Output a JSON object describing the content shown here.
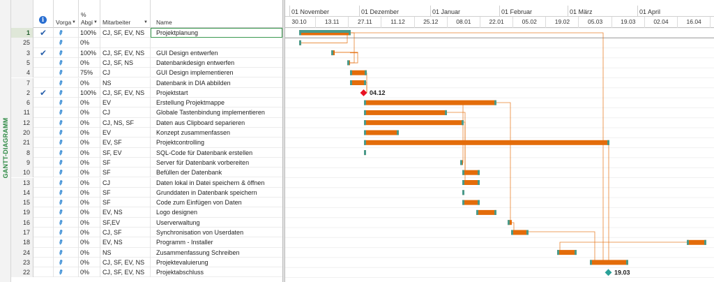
{
  "view_label": "GANTT-DIAGRAMM",
  "columns": {
    "info_icon": "info-icon",
    "mode": "Vorga",
    "pct_top": "%",
    "pct": "Abgi",
    "resources": "Mitarbeiter",
    "name": "Name"
  },
  "rows": [
    {
      "id": "1",
      "done": true,
      "pct": "100%",
      "res": "CJ, SF, EV, NS",
      "name": "Projektplanung"
    },
    {
      "id": "25",
      "done": false,
      "pct": "0%",
      "res": "",
      "name": ""
    },
    {
      "id": "3",
      "done": true,
      "pct": "100%",
      "res": "CJ, SF, EV, NS",
      "name": "GUI Design entwerfen"
    },
    {
      "id": "5",
      "done": false,
      "pct": "0%",
      "res": "CJ, SF, NS",
      "name": "Datenbankdesign entwerfen"
    },
    {
      "id": "4",
      "done": false,
      "pct": "75%",
      "res": "CJ",
      "name": "GUI Design implementieren"
    },
    {
      "id": "7",
      "done": false,
      "pct": "0%",
      "res": "NS",
      "name": "Datenbank in DIA abbilden"
    },
    {
      "id": "2",
      "done": true,
      "pct": "100%",
      "res": "CJ, SF, EV, NS",
      "name": "Projektstart"
    },
    {
      "id": "6",
      "done": false,
      "pct": "0%",
      "res": "EV",
      "name": "Erstellung Projektmappe"
    },
    {
      "id": "11",
      "done": false,
      "pct": "0%",
      "res": "CJ",
      "name": "Globale Tastenbindung implementieren"
    },
    {
      "id": "12",
      "done": false,
      "pct": "0%",
      "res": "CJ, NS, SF",
      "name": "Daten aus Clipboard separieren"
    },
    {
      "id": "20",
      "done": false,
      "pct": "0%",
      "res": "EV",
      "name": "Konzept zusammenfassen"
    },
    {
      "id": "21",
      "done": false,
      "pct": "0%",
      "res": "EV, SF",
      "name": "Projektcontrolling"
    },
    {
      "id": "8",
      "done": false,
      "pct": "0%",
      "res": "SF, EV",
      "name": "SQL-Code für Datenbank erstellen"
    },
    {
      "id": "9",
      "done": false,
      "pct": "0%",
      "res": "SF",
      "name": "Server für Datenbank vorbereiten"
    },
    {
      "id": "10",
      "done": false,
      "pct": "0%",
      "res": "SF",
      "name": "Befüllen der Datenbank"
    },
    {
      "id": "13",
      "done": false,
      "pct": "0%",
      "res": "CJ",
      "name": "Daten lokal in Datei speichern & öffnen"
    },
    {
      "id": "14",
      "done": false,
      "pct": "0%",
      "res": "SF",
      "name": "Grunddaten in Datenbank speichern"
    },
    {
      "id": "15",
      "done": false,
      "pct": "0%",
      "res": "SF",
      "name": "Code zum Einfügen von Daten"
    },
    {
      "id": "19",
      "done": false,
      "pct": "0%",
      "res": "EV, NS",
      "name": "Logo designen"
    },
    {
      "id": "16",
      "done": false,
      "pct": "0%",
      "res": "SF,EV",
      "name": "Userverwaltung"
    },
    {
      "id": "17",
      "done": false,
      "pct": "0%",
      "res": "CJ, SF",
      "name": "Synchronisation von Userdaten"
    },
    {
      "id": "18",
      "done": false,
      "pct": "0%",
      "res": "EV, NS",
      "name": "Programm - Installer"
    },
    {
      "id": "24",
      "done": false,
      "pct": "0%",
      "res": "NS",
      "name": "Zusammenfassung Schreiben"
    },
    {
      "id": "23",
      "done": false,
      "pct": "0%",
      "res": "CJ, SF, EV, NS",
      "name": "Projektevaluierung"
    },
    {
      "id": "22",
      "done": false,
      "pct": "0%",
      "res": "CJ, SF, EV, NS",
      "name": "Projektabschluss"
    }
  ],
  "timeline": {
    "months": [
      "01 November",
      "01 Dezember",
      "01 Januar",
      "01 Februar",
      "01 März",
      "01 April"
    ],
    "days": [
      "30.10",
      "13.11",
      "27.11",
      "11.12",
      "25.12",
      "08.01",
      "22.01",
      "05.02",
      "19.02",
      "05.03",
      "19.03",
      "02.04",
      "16.04"
    ]
  },
  "milestones": {
    "start": "04.12",
    "end": "19.03"
  },
  "colors": {
    "bar": "#e36c0a",
    "bar_edge": "#4a9a8a",
    "link": "#e36c0a",
    "milestone_start": "#e81123",
    "milestone_end": "#2aa198",
    "checkmark": "#2c63ad",
    "mode_icon": "#3c8fd6",
    "view_label": "#2f8a45"
  },
  "icons": {
    "done": "checkmark-icon",
    "mode": "pushpin-icon"
  }
}
